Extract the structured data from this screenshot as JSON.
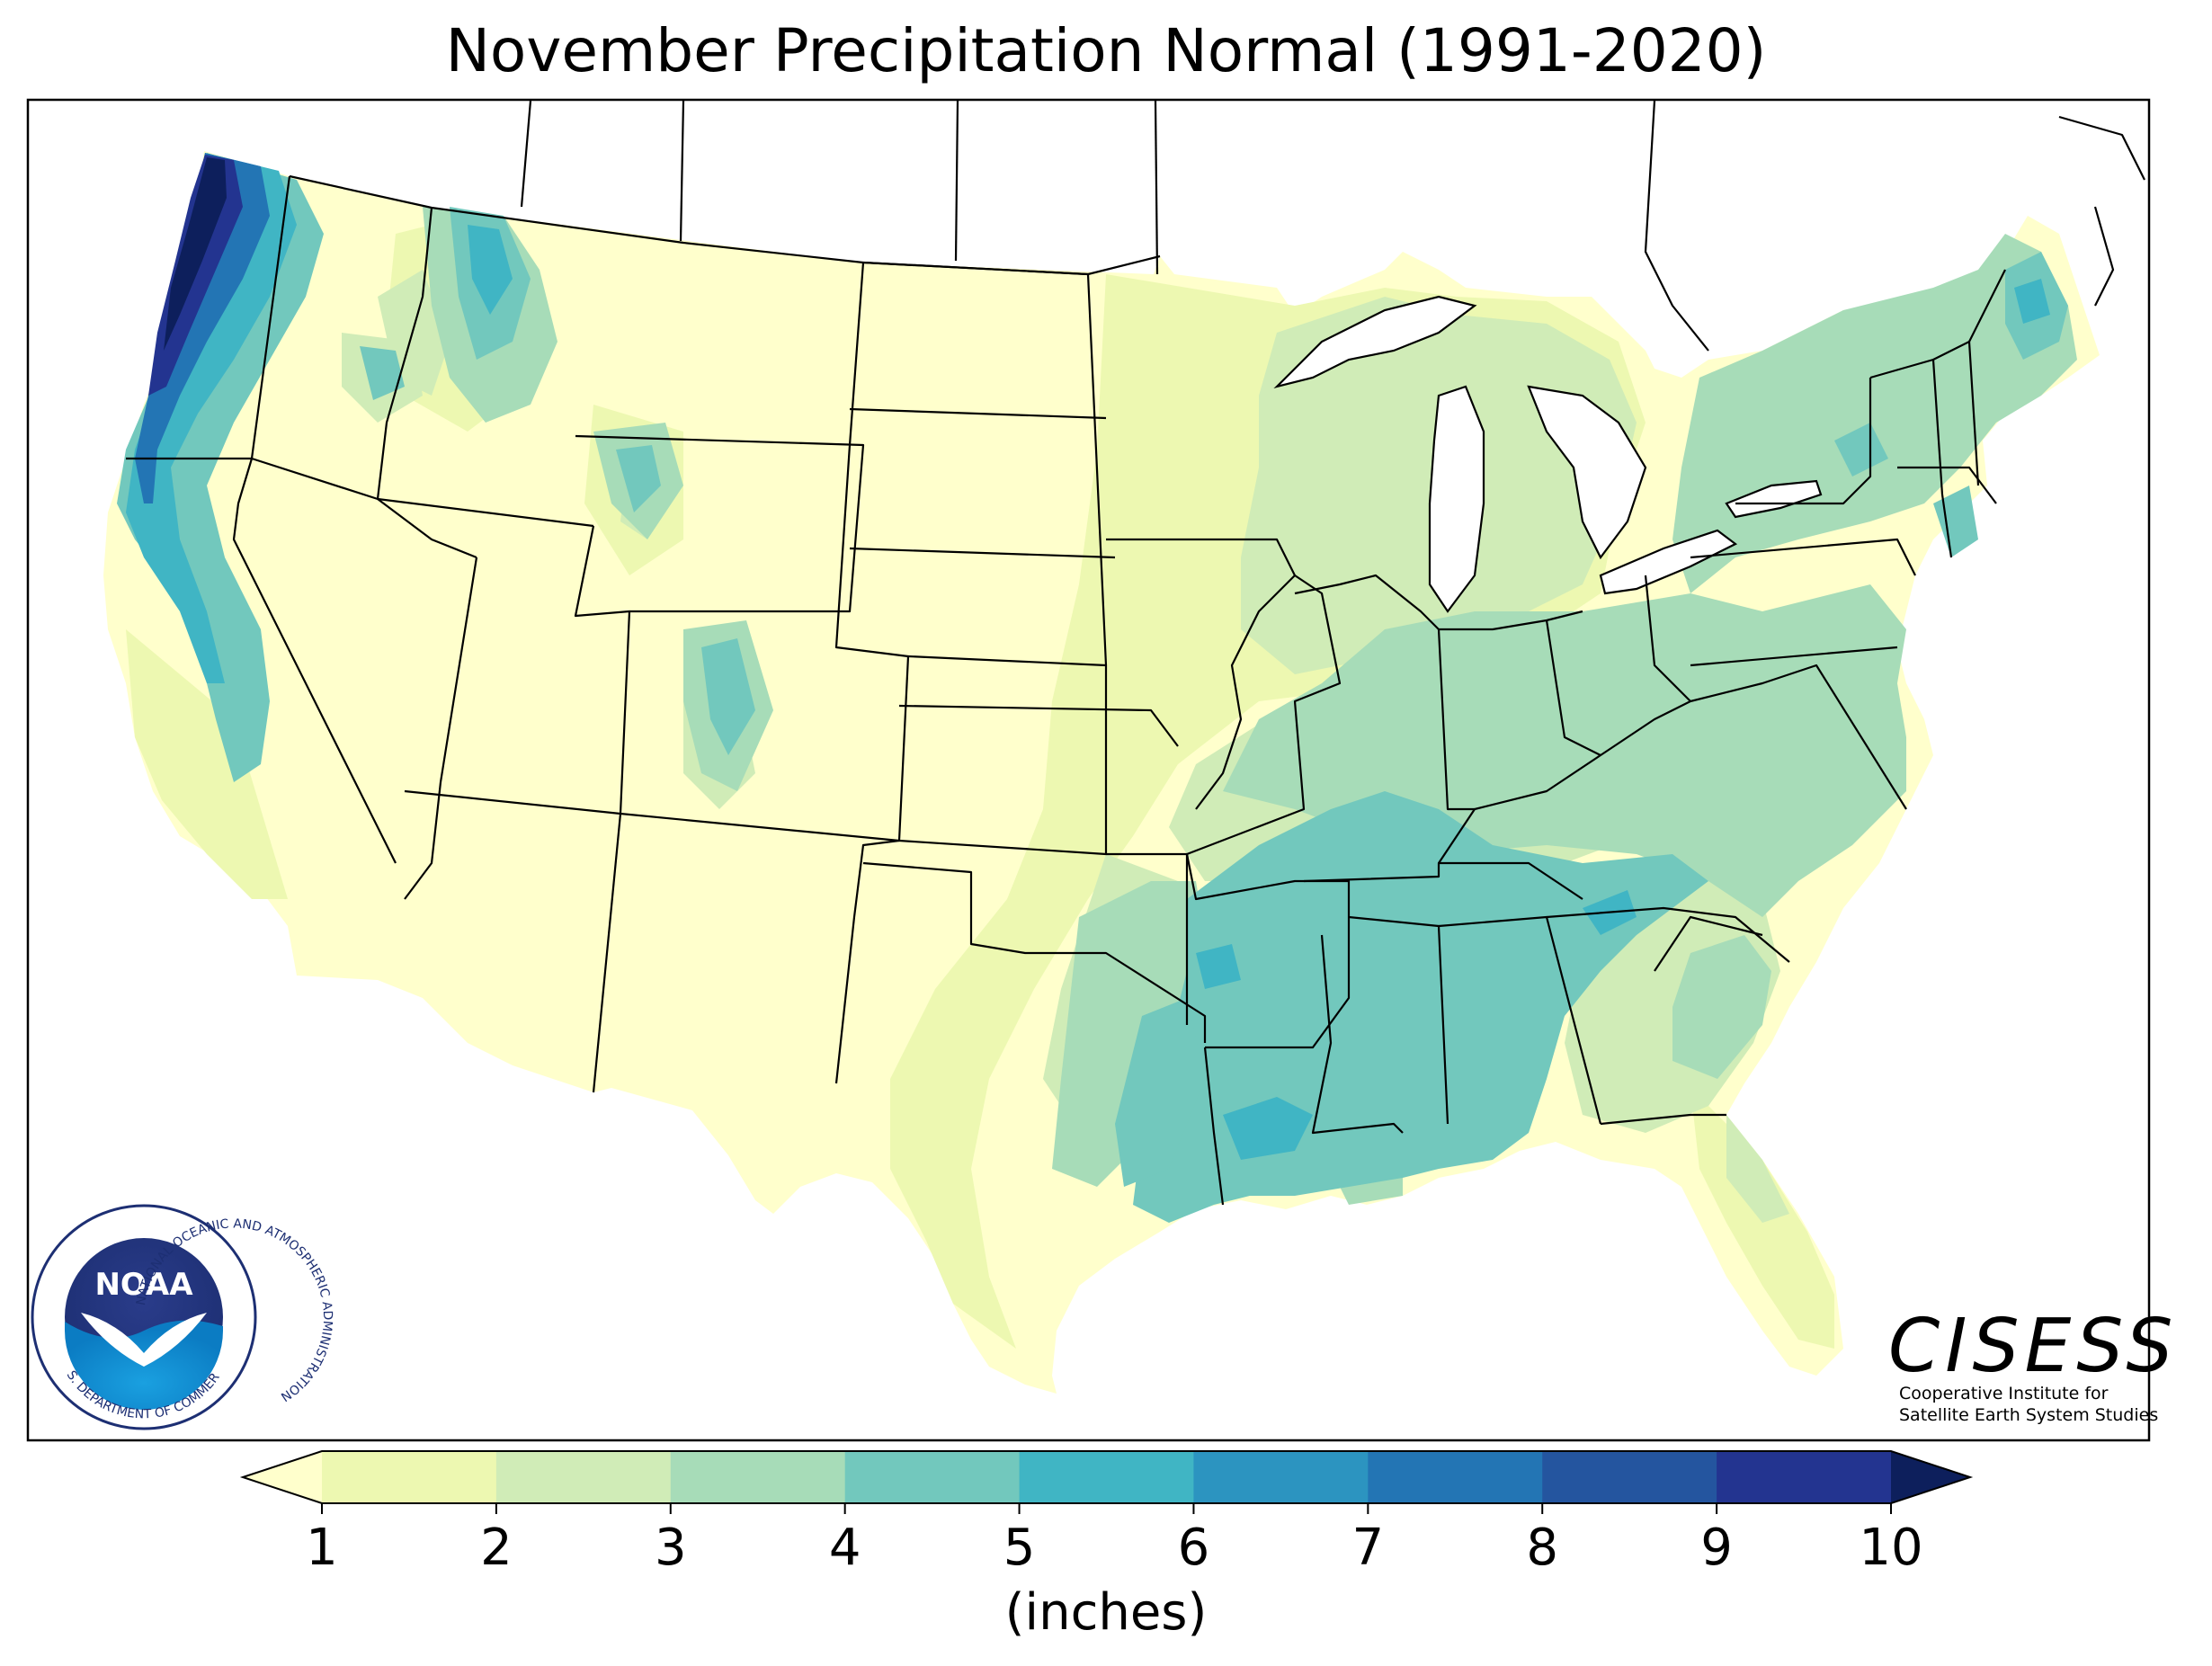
{
  "title": "November Precipitation Normal (1991-2020)",
  "colorbar": {
    "unit_label": "(inches)",
    "ticks": [
      "1",
      "2",
      "3",
      "4",
      "5",
      "6",
      "7",
      "8",
      "9",
      "10"
    ],
    "colors": [
      "#ffffcc",
      "#edf8b1",
      "#d0ecb7",
      "#a7dcb8",
      "#72c8bd",
      "#40b5c4",
      "#2c94c0",
      "#2375b4",
      "#24559f",
      "#233490",
      "#0d1f5c"
    ]
  },
  "logos": {
    "noaa": {
      "name": "NOAA",
      "ring_text": "NATIONAL OCEANIC AND ATMOSPHERIC ADMINISTRATION",
      "bottom_text": "U.S. DEPARTMENT OF COMMERCE"
    },
    "cisess": {
      "name": "CISESS",
      "line1": "Cooperative Institute for",
      "line2": "Satellite Earth System Studies"
    }
  }
}
